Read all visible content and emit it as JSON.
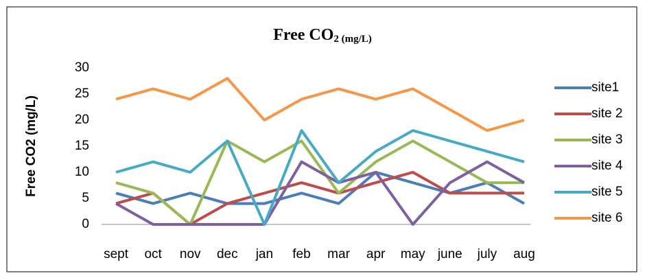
{
  "chart_data": {
    "type": "line",
    "title": {
      "main": "Free CO",
      "subscript": "2 (mg/L)"
    },
    "y_label": "Free CO2 (mg/L)",
    "categories": [
      "sept",
      "oct",
      "nov",
      "dec",
      "jan",
      "feb",
      "mar",
      "apr",
      "may",
      "june",
      "july",
      "aug"
    ],
    "ylim": [
      0,
      30
    ],
    "yticks": [
      0,
      5,
      10,
      15,
      20,
      25,
      30
    ],
    "grid": false,
    "legend": "right",
    "series": [
      {
        "name": "site1",
        "color": "#4a7ebb",
        "values": [
          6,
          4,
          6,
          4,
          4,
          6,
          4,
          10,
          8,
          6,
          8,
          4
        ]
      },
      {
        "name": "site 2",
        "color": "#be4b48",
        "values": [
          4,
          6,
          0,
          4,
          6,
          8,
          6,
          8,
          10,
          6,
          6,
          6
        ]
      },
      {
        "name": "site 3",
        "color": "#98b954",
        "values": [
          8,
          6,
          0,
          16,
          12,
          16,
          6,
          12,
          16,
          12,
          8,
          8
        ]
      },
      {
        "name": "site 4",
        "color": "#7d60a0",
        "values": [
          4,
          0,
          0,
          0,
          0,
          12,
          8,
          10,
          0,
          8,
          12,
          8
        ]
      },
      {
        "name": "site 5",
        "color": "#46aac5",
        "values": [
          10,
          12,
          10,
          16,
          0,
          18,
          8,
          14,
          18,
          16,
          14,
          12
        ]
      },
      {
        "name": "site 6",
        "color": "#f79646",
        "values": [
          24,
          26,
          24,
          28,
          20,
          24,
          26,
          24,
          26,
          22,
          18,
          20
        ]
      }
    ]
  }
}
